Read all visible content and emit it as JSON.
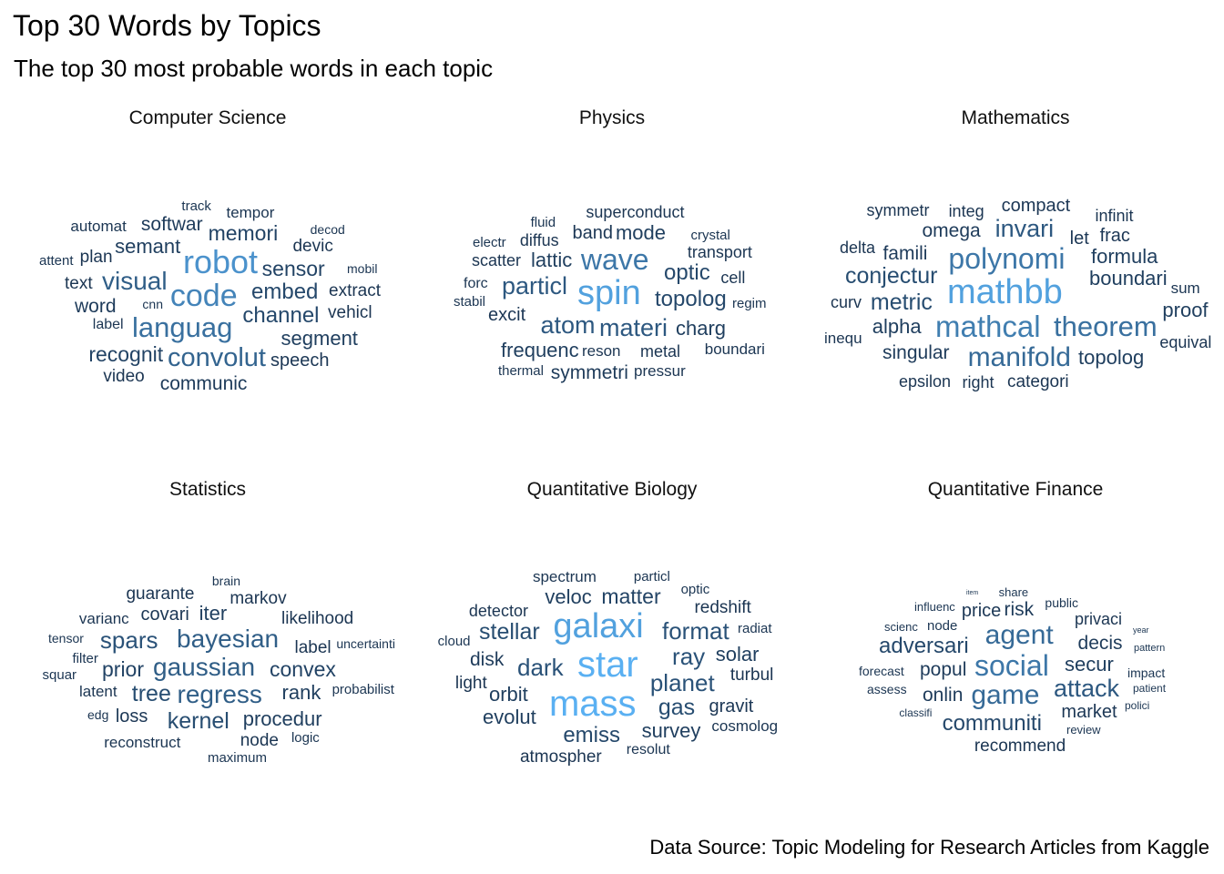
{
  "chart_data": {
    "type": "wordcloud",
    "title": "Top 30 Words by Topics",
    "subtitle": "The top 30 most probable words in each topic",
    "caption": "Data Source: Topic Modeling for Research Articles from Kaggle",
    "color_scale": [
      "#1b3552",
      "#5ab0f2"
    ],
    "panels": [
      {
        "title": "Computer Science",
        "words": [
          "track",
          "automat",
          "softwar",
          "tempor",
          "memori",
          "decod",
          "semant",
          "devic",
          "attent",
          "plan",
          "cnn",
          "robot",
          "sensor",
          "mobil",
          "text",
          "visual",
          "code",
          "embed",
          "extract",
          "word",
          "label",
          "languag",
          "channel",
          "vehicl",
          "recognit",
          "convolut",
          "segment",
          "video",
          "communic",
          "speech"
        ]
      },
      {
        "title": "Physics",
        "words": [
          "fluid",
          "superconduct",
          "electr",
          "diffus",
          "band",
          "mode",
          "crystal",
          "scatter",
          "lattic",
          "wave",
          "transport",
          "optic",
          "forc",
          "particl",
          "cell",
          "spin",
          "stabil",
          "topolog",
          "regim",
          "excit",
          "atom",
          "materi",
          "charg",
          "frequenc",
          "boundari",
          "symmetri",
          "metal",
          "thermal",
          "reson",
          "pressur"
        ]
      },
      {
        "title": "Mathematics",
        "words": [
          "symmetr",
          "integ",
          "compact",
          "infinit",
          "delta",
          "omega",
          "invari",
          "let",
          "frac",
          "famili",
          "polynomi",
          "formula",
          "conjectur",
          "boundari",
          "mathbb",
          "curv",
          "metric",
          "proof",
          "sum",
          "alpha",
          "mathcal",
          "theorem",
          "inequ",
          "singular",
          "manifold",
          "topolog",
          "equival",
          "epsilon",
          "right",
          "categori"
        ]
      },
      {
        "title": "Statistics",
        "words": [
          "brain",
          "guarante",
          "markov",
          "covari",
          "iter",
          "likelihood",
          "varianc",
          "tensor",
          "spars",
          "bayesian",
          "uncertainti",
          "filter",
          "label",
          "squar",
          "prior",
          "gaussian",
          "convex",
          "probabilist",
          "latent",
          "tree",
          "regress",
          "rank",
          "edg",
          "loss",
          "kernel",
          "procedur",
          "logic",
          "node",
          "reconstruct",
          "maximum"
        ]
      },
      {
        "title": "Quantitative Biology",
        "words": [
          "particl",
          "spectrum",
          "optic",
          "detector",
          "veloc",
          "matter",
          "redshift",
          "stellar",
          "galaxi",
          "format",
          "radiat",
          "cloud",
          "ray",
          "solar",
          "disk",
          "dark",
          "star",
          "planet",
          "turbul",
          "light",
          "mass",
          "orbit",
          "gas",
          "gravit",
          "evolut",
          "emiss",
          "cosmolog",
          "survey",
          "atmospher",
          "resolut"
        ]
      },
      {
        "title": "Quantitative Finance",
        "words": [
          "item",
          "share",
          "influenc",
          "public",
          "price",
          "risk",
          "privaci",
          "scienc",
          "node",
          "year",
          "adversari",
          "agent",
          "decis",
          "pattern",
          "forecast",
          "popul",
          "social",
          "secur",
          "impact",
          "assess",
          "onlin",
          "game",
          "attack",
          "patient",
          "classifi",
          "polici",
          "market",
          "communiti",
          "recommend",
          "review"
        ]
      }
    ]
  }
}
